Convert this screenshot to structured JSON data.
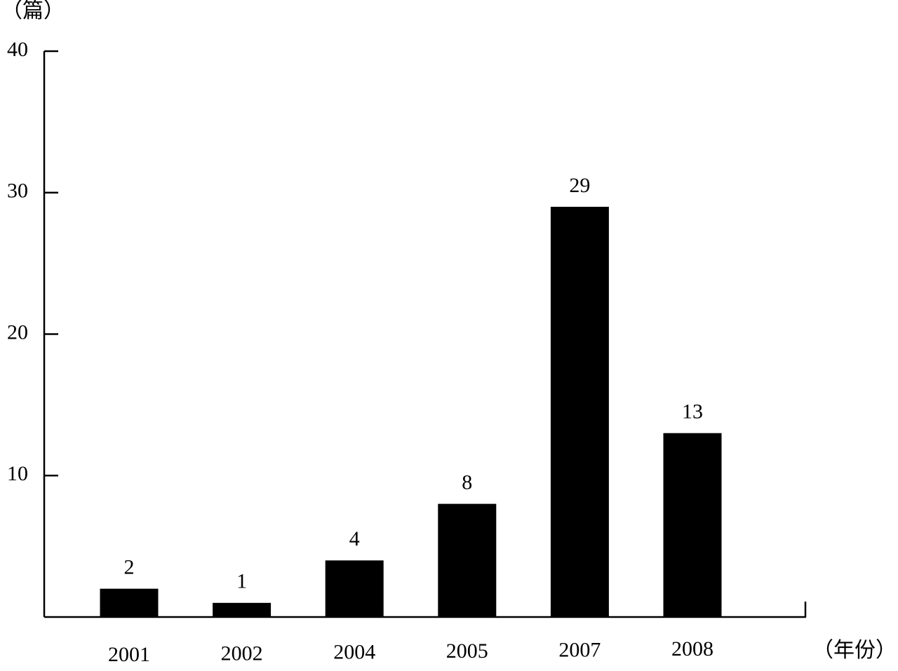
{
  "chart_data": {
    "type": "bar",
    "y_label": "（篇）",
    "x_label": "（年份）",
    "categories": [
      "2001",
      "2002",
      "2004",
      "2005",
      "2007",
      "2008"
    ],
    "values": [
      2,
      1,
      4,
      8,
      29,
      13
    ],
    "color": "#000000",
    "ylim": [
      0,
      40
    ],
    "yticks": [
      10,
      20,
      30,
      40
    ],
    "grid": false
  }
}
